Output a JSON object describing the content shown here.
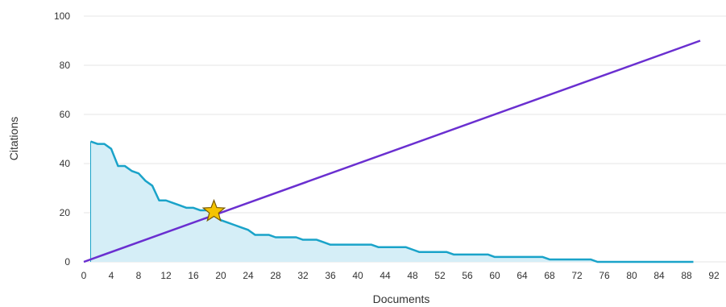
{
  "chart_data": {
    "type": "area",
    "xlabel": "Documents",
    "ylabel": "Citations",
    "xlim": [
      0,
      92
    ],
    "ylim": [
      0,
      100
    ],
    "x_ticks": [
      0,
      4,
      8,
      12,
      16,
      20,
      24,
      28,
      32,
      36,
      40,
      44,
      48,
      52,
      56,
      60,
      64,
      68,
      72,
      76,
      80,
      84,
      88,
      92
    ],
    "y_ticks": [
      0,
      20,
      40,
      60,
      80,
      100
    ],
    "grid": "horizontal",
    "series": [
      {
        "type": "area",
        "color": "#1aa3c9",
        "fill": "#d5eef7",
        "x": [
          1,
          2,
          3,
          4,
          5,
          6,
          7,
          8,
          9,
          10,
          11,
          12,
          13,
          14,
          15,
          16,
          17,
          18,
          19,
          20,
          21,
          22,
          23,
          24,
          25,
          26,
          27,
          28,
          29,
          30,
          31,
          32,
          33,
          34,
          35,
          36,
          37,
          38,
          39,
          40,
          41,
          42,
          43,
          44,
          45,
          46,
          47,
          48,
          49,
          50,
          51,
          52,
          53,
          54,
          55,
          56,
          57,
          58,
          59,
          60,
          61,
          62,
          63,
          64,
          65,
          66,
          67,
          68,
          69,
          70,
          71,
          72,
          73,
          74,
          75,
          76,
          77,
          78,
          79,
          80,
          81,
          82,
          83,
          84,
          85,
          86,
          87,
          88,
          89
        ],
        "values": [
          49,
          48,
          48,
          46,
          39,
          39,
          37,
          36,
          33,
          31,
          25,
          25,
          24,
          23,
          22,
          22,
          21,
          21,
          20,
          17,
          16,
          15,
          14,
          13,
          11,
          11,
          11,
          10,
          10,
          10,
          10,
          9,
          9,
          9,
          8,
          7,
          7,
          7,
          7,
          7,
          7,
          7,
          6,
          6,
          6,
          6,
          6,
          5,
          4,
          4,
          4,
          4,
          4,
          3,
          3,
          3,
          3,
          3,
          3,
          2,
          2,
          2,
          2,
          2,
          2,
          2,
          2,
          1,
          1,
          1,
          1,
          1,
          1,
          1,
          0,
          0,
          0,
          0,
          0,
          0,
          0,
          0,
          0,
          0,
          0,
          0,
          0,
          0,
          0
        ]
      },
      {
        "type": "line",
        "color": "#6a2fd0",
        "x": [
          0,
          90
        ],
        "values": [
          0,
          90
        ]
      }
    ],
    "marker": {
      "shape": "star",
      "x": 19,
      "y": 20.5,
      "fill": "#f5c400",
      "stroke": "#7a5b00"
    }
  }
}
